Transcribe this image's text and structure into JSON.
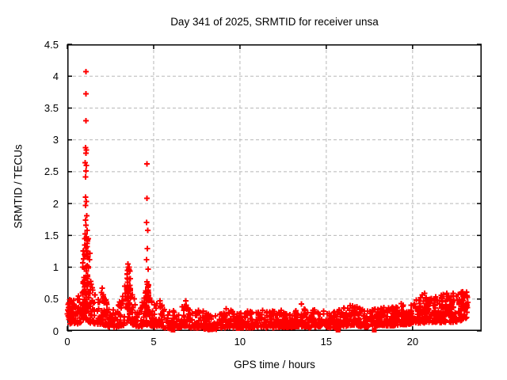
{
  "chart_data": {
    "type": "scatter",
    "title": "Day 341 of 2025, SRMTID for receiver unsa",
    "xlabel": "GPS time / hours",
    "ylabel": "SRMTID / TECUs",
    "xlim": [
      0,
      24
    ],
    "ylim": [
      0,
      4.5
    ],
    "xticks": [
      0,
      5,
      10,
      15,
      20
    ],
    "xtick_labels": [
      "0",
      "5",
      "10",
      "15",
      "20"
    ],
    "yticks": [
      0,
      0.5,
      1,
      1.5,
      2,
      2.5,
      3,
      3.5,
      4,
      4.5
    ],
    "ytick_labels": [
      "0",
      "0.5",
      "1",
      "1.5",
      "2",
      "2.5",
      "3",
      "3.5",
      "4",
      "4.5"
    ],
    "grid": true,
    "legend": "none",
    "marker": "plus",
    "marker_color": "#ff0000",
    "grid_color": "#b8b8b8",
    "border_color": "#000000",
    "seed": 341,
    "x_data_max": 23.2,
    "points_per_hour": 70,
    "band_envelope": [
      [
        0.0,
        0.1,
        0.4
      ],
      [
        0.25,
        0.1,
        0.52
      ],
      [
        0.5,
        0.1,
        0.45
      ],
      [
        0.7,
        0.12,
        0.6
      ],
      [
        0.9,
        0.15,
        0.9
      ],
      [
        1.05,
        0.18,
        1.1
      ],
      [
        1.2,
        0.15,
        0.95
      ],
      [
        1.35,
        0.12,
        0.8
      ],
      [
        1.55,
        0.1,
        0.6
      ],
      [
        1.8,
        0.1,
        0.5
      ],
      [
        2.0,
        0.1,
        0.65
      ],
      [
        2.2,
        0.08,
        0.5
      ],
      [
        2.45,
        0.06,
        0.38
      ],
      [
        2.7,
        0.05,
        0.32
      ],
      [
        2.95,
        0.07,
        0.45
      ],
      [
        3.2,
        0.08,
        0.55
      ],
      [
        3.45,
        0.12,
        0.85
      ],
      [
        3.6,
        0.15,
        1.02
      ],
      [
        3.75,
        0.1,
        0.7
      ],
      [
        3.95,
        0.08,
        0.48
      ],
      [
        4.2,
        0.06,
        0.4
      ],
      [
        4.45,
        0.08,
        0.5
      ],
      [
        4.65,
        0.1,
        0.85
      ],
      [
        4.85,
        0.08,
        0.5
      ],
      [
        5.1,
        0.06,
        0.42
      ],
      [
        5.35,
        0.08,
        0.55
      ],
      [
        5.6,
        0.05,
        0.38
      ],
      [
        5.9,
        0.04,
        0.3
      ],
      [
        6.2,
        0.04,
        0.32
      ],
      [
        6.5,
        0.05,
        0.38
      ],
      [
        6.85,
        0.07,
        0.45
      ],
      [
        7.1,
        0.05,
        0.35
      ],
      [
        7.4,
        0.04,
        0.3
      ],
      [
        7.7,
        0.05,
        0.38
      ],
      [
        8.0,
        0.03,
        0.32
      ],
      [
        8.3,
        0.02,
        0.26
      ],
      [
        8.6,
        0.02,
        0.25
      ],
      [
        8.9,
        0.04,
        0.3
      ],
      [
        9.2,
        0.05,
        0.35
      ],
      [
        9.5,
        0.05,
        0.32
      ],
      [
        9.8,
        0.04,
        0.28
      ],
      [
        10.1,
        0.05,
        0.3
      ],
      [
        10.4,
        0.05,
        0.32
      ],
      [
        10.8,
        0.05,
        0.3
      ],
      [
        11.2,
        0.06,
        0.33
      ],
      [
        11.6,
        0.05,
        0.3
      ],
      [
        12.0,
        0.05,
        0.32
      ],
      [
        12.4,
        0.06,
        0.35
      ],
      [
        12.8,
        0.05,
        0.3
      ],
      [
        13.2,
        0.06,
        0.33
      ],
      [
        13.6,
        0.07,
        0.38
      ],
      [
        14.0,
        0.05,
        0.3
      ],
      [
        14.4,
        0.06,
        0.35
      ],
      [
        14.8,
        0.06,
        0.32
      ],
      [
        15.2,
        0.05,
        0.3
      ],
      [
        15.6,
        0.05,
        0.32
      ],
      [
        16.0,
        0.07,
        0.36
      ],
      [
        16.5,
        0.09,
        0.42
      ],
      [
        16.9,
        0.07,
        0.36
      ],
      [
        17.3,
        0.06,
        0.32
      ],
      [
        17.7,
        0.07,
        0.34
      ],
      [
        18.1,
        0.09,
        0.4
      ],
      [
        18.5,
        0.08,
        0.36
      ],
      [
        18.9,
        0.08,
        0.38
      ],
      [
        19.3,
        0.1,
        0.44
      ],
      [
        19.7,
        0.1,
        0.42
      ],
      [
        20.1,
        0.12,
        0.52
      ],
      [
        20.5,
        0.12,
        0.48
      ],
      [
        20.9,
        0.13,
        0.55
      ],
      [
        21.3,
        0.14,
        0.6
      ],
      [
        21.7,
        0.13,
        0.58
      ],
      [
        22.1,
        0.14,
        0.55
      ],
      [
        22.5,
        0.13,
        0.58
      ],
      [
        22.8,
        0.16,
        0.62
      ],
      [
        23.1,
        0.2,
        0.65
      ],
      [
        23.2,
        0.22,
        0.6
      ]
    ],
    "clusters": [
      [
        1.05,
        0.18,
        0.3,
        1.45,
        50
      ],
      [
        3.55,
        0.12,
        0.3,
        1.0,
        35
      ],
      [
        4.63,
        0.08,
        0.3,
        0.95,
        20
      ],
      [
        0.2,
        0.18,
        0.15,
        0.5,
        25
      ],
      [
        21.8,
        1.4,
        0.25,
        0.6,
        70
      ],
      [
        22.95,
        0.25,
        0.35,
        0.62,
        25
      ]
    ],
    "outliers": [
      [
        1.08,
        4.07
      ],
      [
        1.08,
        3.72
      ],
      [
        1.07,
        3.3
      ],
      [
        1.05,
        2.88
      ],
      [
        1.1,
        2.84
      ],
      [
        1.07,
        2.79
      ],
      [
        1.04,
        2.64
      ],
      [
        1.1,
        2.6
      ],
      [
        1.07,
        2.51
      ],
      [
        1.06,
        2.42
      ],
      [
        1.05,
        2.1
      ],
      [
        1.09,
        2.03
      ],
      [
        1.06,
        1.97
      ],
      [
        1.12,
        1.81
      ],
      [
        1.05,
        1.74
      ],
      [
        1.08,
        1.66
      ],
      [
        1.14,
        1.58
      ],
      [
        1.03,
        1.52
      ],
      [
        1.1,
        1.47
      ],
      [
        1.16,
        1.41
      ],
      [
        1.02,
        1.35
      ],
      [
        1.07,
        1.3
      ],
      [
        1.12,
        1.25
      ],
      [
        0.98,
        1.2
      ],
      [
        1.2,
        1.16
      ],
      [
        1.3,
        1.22
      ],
      [
        1.28,
        1.12
      ],
      [
        4.62,
        2.62
      ],
      [
        4.62,
        2.08
      ],
      [
        4.6,
        1.7
      ],
      [
        4.65,
        1.58
      ],
      [
        4.63,
        1.29
      ],
      [
        4.58,
        1.12
      ],
      [
        4.68,
        0.97
      ],
      [
        3.52,
        1.05
      ],
      [
        3.58,
        1.0
      ],
      [
        3.55,
        0.97
      ],
      [
        2.03,
        0.67
      ],
      [
        6.85,
        0.47
      ],
      [
        8.2,
        0.02
      ],
      [
        13.55,
        0.42
      ],
      [
        19.35,
        0.43
      ]
    ],
    "zero_markers": [
      6.12,
      15.68,
      17.78
    ]
  }
}
